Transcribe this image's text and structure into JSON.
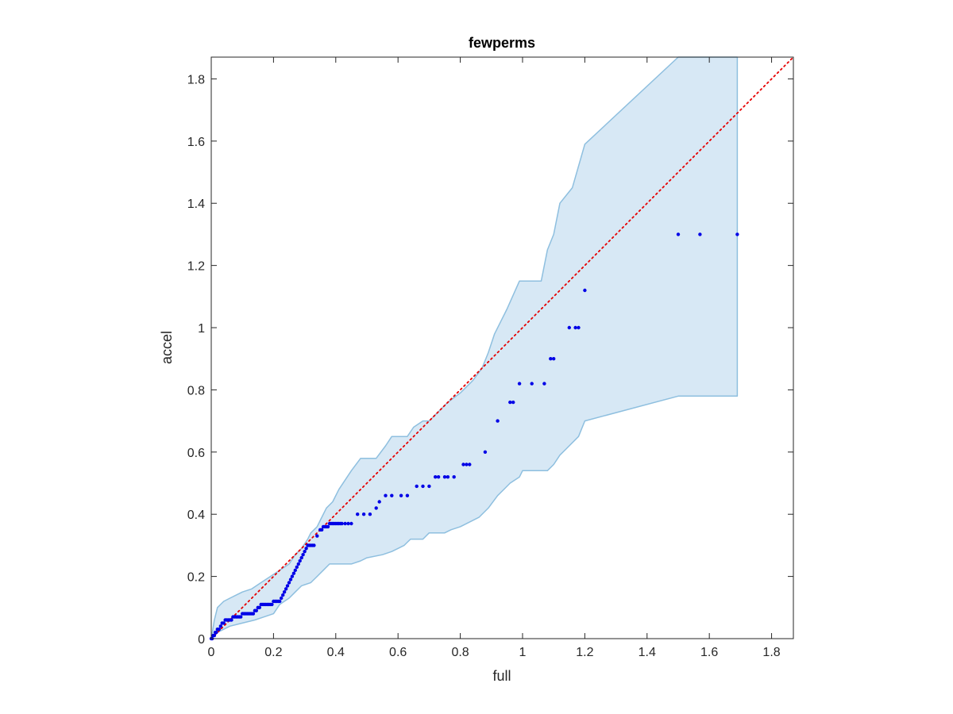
{
  "chart_data": {
    "type": "scatter",
    "title": "fewperms",
    "xlabel": "full",
    "ylabel": "accel",
    "xlim": [
      0,
      1.87
    ],
    "ylim": [
      0,
      1.87
    ],
    "xticks": [
      0,
      0.2,
      0.4,
      0.6,
      0.8,
      1,
      1.2,
      1.4,
      1.6,
      1.8
    ],
    "yticks": [
      0,
      0.2,
      0.4,
      0.6,
      0.8,
      1,
      1.2,
      1.4,
      1.6,
      1.8
    ],
    "xtick_labels": [
      "0",
      "0.2",
      "0.4",
      "0.6",
      "0.8",
      "1",
      "1.2",
      "1.4",
      "1.6",
      "1.8"
    ],
    "ytick_labels": [
      "0",
      "0.2",
      "0.4",
      "0.6",
      "0.8",
      "1",
      "1.2",
      "1.4",
      "1.6",
      "1.8"
    ],
    "grid": false,
    "legend": "none",
    "colors": {
      "points": "#0000e6",
      "band_fill": "#d7e8f5",
      "band_edge": "#8ebfdf",
      "reference_line": "#e60000",
      "axes": "#262626"
    },
    "reference_line": {
      "x": [
        0,
        1.87
      ],
      "y": [
        0,
        1.87
      ],
      "style": "dotted"
    },
    "band": {
      "upper": [
        [
          0,
          0
        ],
        [
          0.005,
          0.03
        ],
        [
          0.01,
          0.06
        ],
        [
          0.015,
          0.08
        ],
        [
          0.02,
          0.1
        ],
        [
          0.03,
          0.11
        ],
        [
          0.04,
          0.12
        ],
        [
          0.06,
          0.13
        ],
        [
          0.08,
          0.14
        ],
        [
          0.1,
          0.15
        ],
        [
          0.13,
          0.16
        ],
        [
          0.16,
          0.18
        ],
        [
          0.19,
          0.2
        ],
        [
          0.22,
          0.22
        ],
        [
          0.25,
          0.24
        ],
        [
          0.27,
          0.27
        ],
        [
          0.29,
          0.29
        ],
        [
          0.31,
          0.32
        ],
        [
          0.32,
          0.34
        ],
        [
          0.34,
          0.36
        ],
        [
          0.35,
          0.38
        ],
        [
          0.37,
          0.42
        ],
        [
          0.39,
          0.44
        ],
        [
          0.41,
          0.48
        ],
        [
          0.43,
          0.51
        ],
        [
          0.45,
          0.54
        ],
        [
          0.48,
          0.58
        ],
        [
          0.53,
          0.58
        ],
        [
          0.56,
          0.62
        ],
        [
          0.58,
          0.65
        ],
        [
          0.63,
          0.65
        ],
        [
          0.65,
          0.68
        ],
        [
          0.68,
          0.7
        ],
        [
          0.7,
          0.7
        ],
        [
          0.72,
          0.72
        ],
        [
          0.74,
          0.74
        ],
        [
          0.76,
          0.76
        ],
        [
          0.8,
          0.79
        ],
        [
          0.84,
          0.83
        ],
        [
          0.87,
          0.87
        ],
        [
          0.89,
          0.92
        ],
        [
          0.91,
          0.98
        ],
        [
          0.95,
          1.06
        ],
        [
          0.99,
          1.15
        ],
        [
          1.04,
          1.15
        ],
        [
          1.06,
          1.15
        ],
        [
          1.08,
          1.25
        ],
        [
          1.1,
          1.3
        ],
        [
          1.12,
          1.4
        ],
        [
          1.16,
          1.45
        ],
        [
          1.2,
          1.59
        ],
        [
          1.5,
          1.87
        ],
        [
          1.69,
          1.87
        ]
      ],
      "lower": [
        [
          1.69,
          0.78
        ],
        [
          1.5,
          0.78
        ],
        [
          1.2,
          0.7
        ],
        [
          1.18,
          0.65
        ],
        [
          1.14,
          0.61
        ],
        [
          1.12,
          0.59
        ],
        [
          1.1,
          0.56
        ],
        [
          1.08,
          0.54
        ],
        [
          1.06,
          0.54
        ],
        [
          1,
          0.54
        ],
        [
          0.99,
          0.52
        ],
        [
          0.96,
          0.5
        ],
        [
          0.94,
          0.48
        ],
        [
          0.92,
          0.46
        ],
        [
          0.89,
          0.42
        ],
        [
          0.86,
          0.39
        ],
        [
          0.8,
          0.36
        ],
        [
          0.77,
          0.35
        ],
        [
          0.75,
          0.34
        ],
        [
          0.7,
          0.34
        ],
        [
          0.68,
          0.32
        ],
        [
          0.64,
          0.32
        ],
        [
          0.62,
          0.3
        ],
        [
          0.6,
          0.29
        ],
        [
          0.58,
          0.28
        ],
        [
          0.55,
          0.27
        ],
        [
          0.5,
          0.26
        ],
        [
          0.48,
          0.25
        ],
        [
          0.45,
          0.24
        ],
        [
          0.43,
          0.24
        ],
        [
          0.38,
          0.24
        ],
        [
          0.36,
          0.22
        ],
        [
          0.34,
          0.2
        ],
        [
          0.32,
          0.18
        ],
        [
          0.29,
          0.17
        ],
        [
          0.27,
          0.15
        ],
        [
          0.25,
          0.13
        ],
        [
          0.22,
          0.11
        ],
        [
          0.2,
          0.08
        ],
        [
          0.17,
          0.07
        ],
        [
          0.14,
          0.06
        ],
        [
          0.1,
          0.05
        ],
        [
          0.06,
          0.04
        ],
        [
          0.04,
          0.03
        ],
        [
          0.02,
          0.02
        ],
        [
          0.01,
          0.01
        ],
        [
          0,
          0
        ]
      ]
    },
    "points": {
      "x": [
        0.0,
        0.003,
        0.006,
        0.01,
        0.013,
        0.016,
        0.02,
        0.025,
        0.03,
        0.035,
        0.04,
        0.045,
        0.05,
        0.055,
        0.06,
        0.065,
        0.07,
        0.075,
        0.08,
        0.085,
        0.09,
        0.095,
        0.1,
        0.105,
        0.11,
        0.115,
        0.12,
        0.125,
        0.13,
        0.135,
        0.14,
        0.145,
        0.15,
        0.155,
        0.16,
        0.165,
        0.17,
        0.175,
        0.18,
        0.185,
        0.19,
        0.195,
        0.2,
        0.205,
        0.21,
        0.215,
        0.22,
        0.225,
        0.23,
        0.235,
        0.24,
        0.245,
        0.25,
        0.255,
        0.26,
        0.265,
        0.27,
        0.275,
        0.28,
        0.285,
        0.29,
        0.295,
        0.3,
        0.305,
        0.31,
        0.315,
        0.32,
        0.325,
        0.33,
        0.34,
        0.35,
        0.355,
        0.36,
        0.365,
        0.37,
        0.375,
        0.38,
        0.385,
        0.39,
        0.395,
        0.4,
        0.405,
        0.41,
        0.415,
        0.42,
        0.43,
        0.44,
        0.45,
        0.47,
        0.49,
        0.51,
        0.53,
        0.54,
        0.56,
        0.58,
        0.61,
        0.63,
        0.66,
        0.68,
        0.7,
        0.72,
        0.73,
        0.75,
        0.76,
        0.78,
        0.81,
        0.82,
        0.83,
        0.88,
        0.92,
        0.96,
        0.97,
        0.99,
        1.03,
        1.07,
        1.09,
        1.1,
        1.15,
        1.17,
        1.18,
        1.2,
        1.5,
        1.57,
        1.69
      ],
      "y": [
        0.0,
        0.0,
        0.01,
        0.01,
        0.02,
        0.02,
        0.03,
        0.03,
        0.04,
        0.05,
        0.05,
        0.06,
        0.06,
        0.06,
        0.06,
        0.06,
        0.07,
        0.07,
        0.07,
        0.07,
        0.07,
        0.07,
        0.08,
        0.08,
        0.08,
        0.08,
        0.08,
        0.08,
        0.08,
        0.08,
        0.09,
        0.09,
        0.1,
        0.1,
        0.11,
        0.11,
        0.11,
        0.11,
        0.11,
        0.11,
        0.11,
        0.11,
        0.12,
        0.12,
        0.12,
        0.12,
        0.12,
        0.13,
        0.14,
        0.15,
        0.16,
        0.17,
        0.18,
        0.19,
        0.2,
        0.21,
        0.22,
        0.23,
        0.24,
        0.25,
        0.26,
        0.27,
        0.28,
        0.29,
        0.3,
        0.3,
        0.3,
        0.3,
        0.3,
        0.33,
        0.35,
        0.35,
        0.36,
        0.36,
        0.36,
        0.36,
        0.37,
        0.37,
        0.37,
        0.37,
        0.37,
        0.37,
        0.37,
        0.37,
        0.37,
        0.37,
        0.37,
        0.37,
        0.4,
        0.4,
        0.4,
        0.42,
        0.44,
        0.46,
        0.46,
        0.46,
        0.46,
        0.49,
        0.49,
        0.49,
        0.52,
        0.52,
        0.52,
        0.52,
        0.52,
        0.56,
        0.56,
        0.56,
        0.6,
        0.7,
        0.76,
        0.76,
        0.82,
        0.82,
        0.82,
        0.9,
        0.9,
        1.0,
        1.0,
        1.0,
        1.12,
        1.3,
        1.3,
        1.3
      ]
    }
  }
}
